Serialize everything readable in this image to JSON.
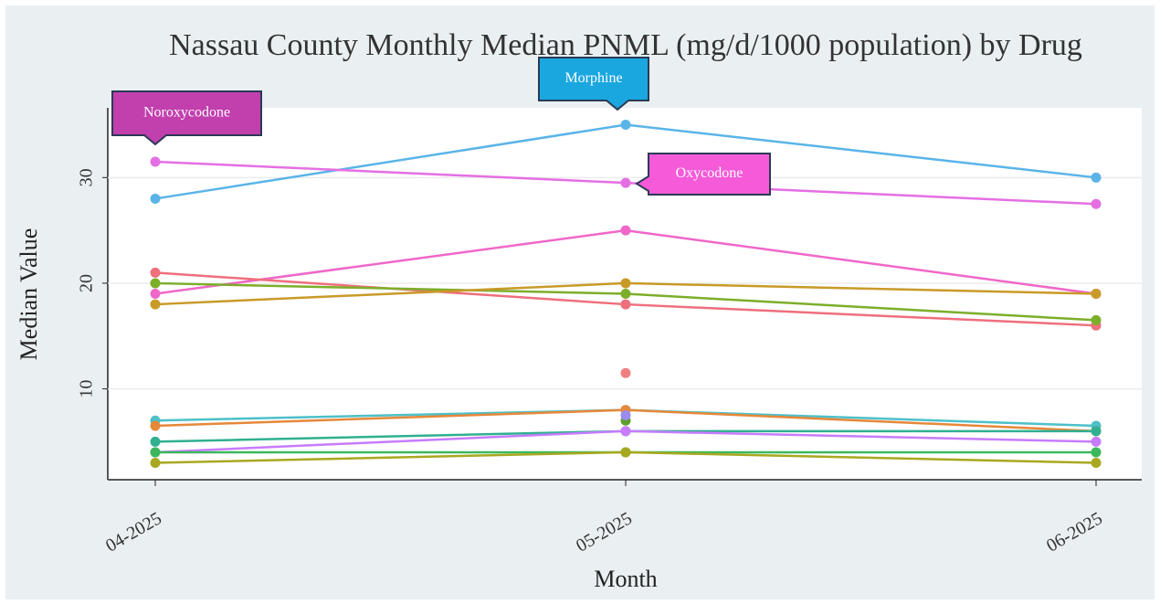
{
  "chart_data": {
    "type": "line",
    "title": "Nassau County Monthly Median PNML (mg/d/1000 population) by Drug",
    "x_label": "Month",
    "y_label": "Median Value",
    "categories": [
      "04-2025",
      "05-2025",
      "06-2025"
    ],
    "ylim": [
      1.4,
      36.6
    ],
    "yticks": [
      10,
      20,
      30
    ],
    "grid": true,
    "series": [
      {
        "color": "#5ab4e8",
        "values": [
          28,
          35,
          30
        ]
      },
      {
        "color": "#e46fe3",
        "values": [
          31.5,
          29.5,
          27.5
        ]
      },
      {
        "color": "#f067c8",
        "values": [
          19,
          25,
          19
        ]
      },
      {
        "color": "#ef6f7c",
        "values": [
          21,
          18,
          16
        ]
      },
      {
        "color": "#7cae2a",
        "values": [
          20,
          19,
          16.5
        ]
      },
      {
        "color": "#c99a28",
        "values": [
          18,
          20,
          19
        ]
      },
      {
        "color": "#f08080",
        "values": [
          null,
          11.5,
          null
        ]
      },
      {
        "color": "#4dc0c8",
        "values": [
          7,
          8,
          6.5
        ]
      },
      {
        "color": "#e6883a",
        "values": [
          6.5,
          8,
          6
        ]
      },
      {
        "color": "#5aa02c",
        "values": [
          null,
          7,
          null
        ]
      },
      {
        "color": "#9a8cf0",
        "values": [
          null,
          7.5,
          null
        ]
      },
      {
        "color": "#30b090",
        "values": [
          5,
          6,
          6
        ]
      },
      {
        "color": "#c77cff",
        "values": [
          4,
          6,
          5
        ]
      },
      {
        "color": "#3cb85c",
        "values": [
          4,
          4,
          4
        ]
      },
      {
        "color": "#a8a820",
        "values": [
          3,
          4,
          3
        ]
      }
    ],
    "annotations": [
      {
        "text": "Noroxycodone",
        "color": "#c23fae"
      },
      {
        "text": "Morphine",
        "color": "#1aa7e0"
      },
      {
        "text": "Oxycodone",
        "color": "#f55ad8"
      }
    ]
  }
}
